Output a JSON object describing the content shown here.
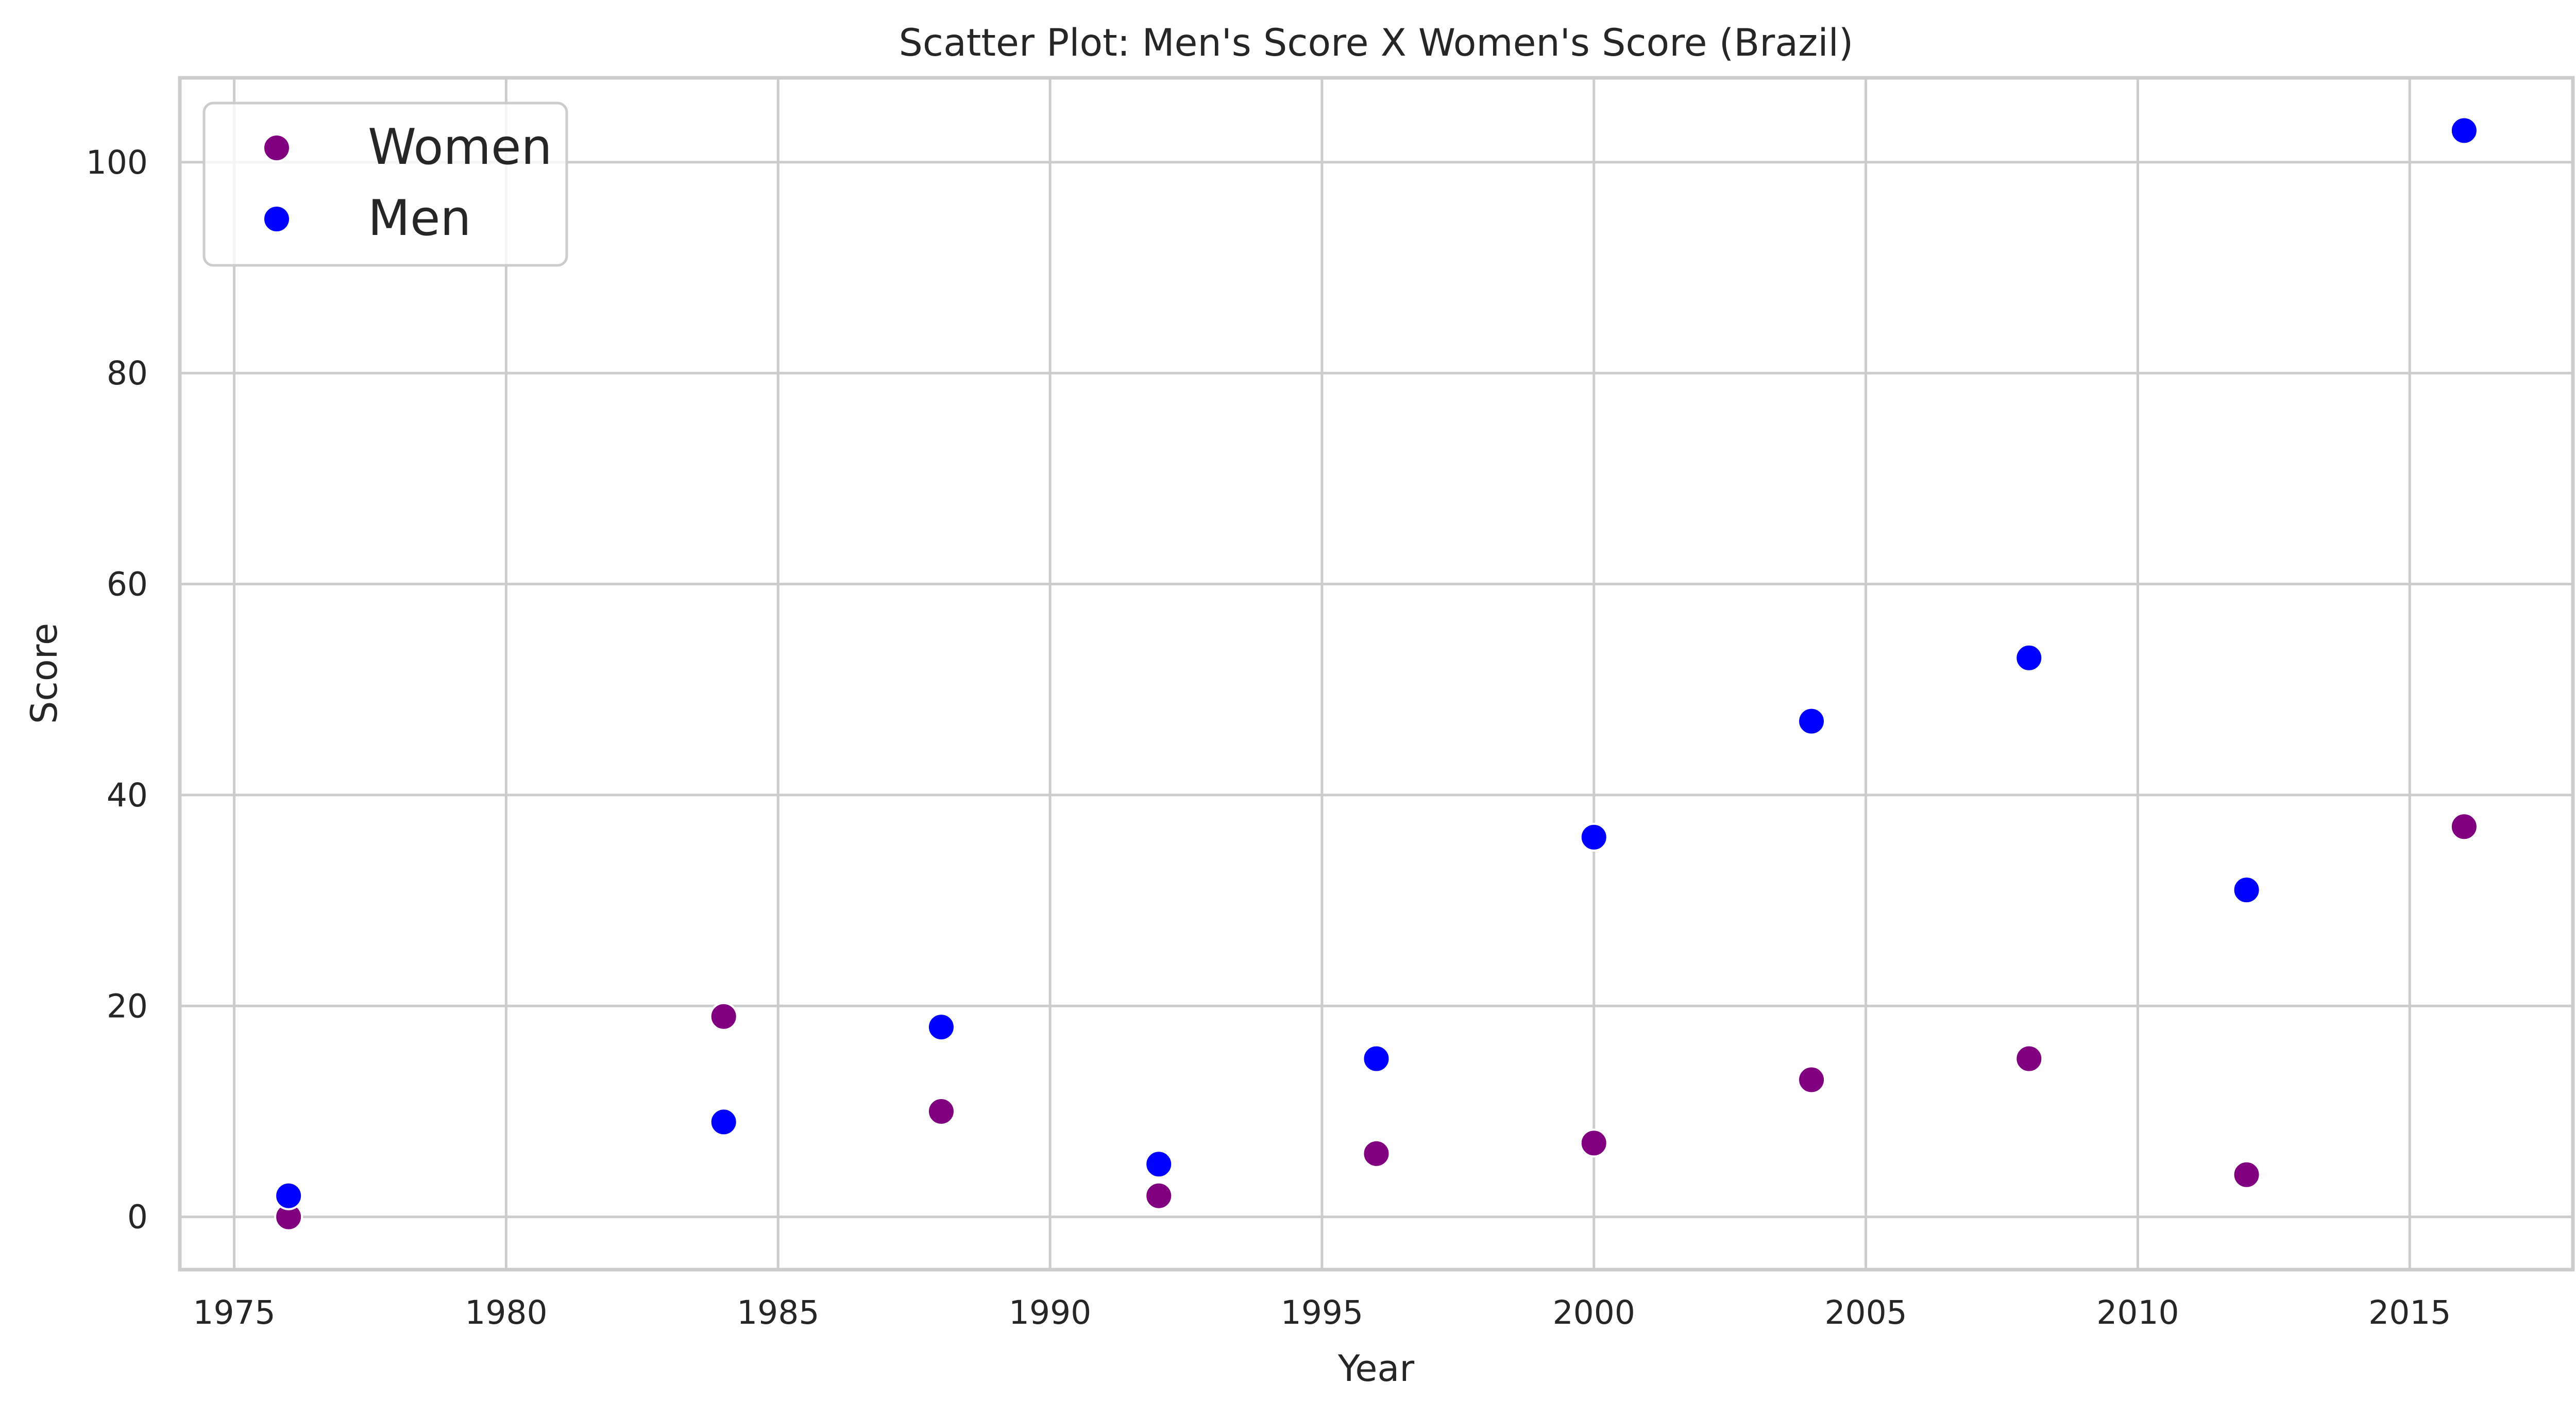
{
  "chart_data": {
    "type": "scatter",
    "title": "Scatter Plot: Men's Score X Women's Score (Brazil)",
    "xlabel": "Year",
    "ylabel": "Score",
    "xlim": [
      1974.0,
      2018.0
    ],
    "ylim": [
      -5,
      108
    ],
    "xticks": [
      1975,
      1980,
      1985,
      1990,
      1995,
      2000,
      2005,
      2010,
      2015
    ],
    "yticks": [
      0,
      20,
      40,
      60,
      80,
      100
    ],
    "grid": true,
    "legend_position": "top-left",
    "series": [
      {
        "name": "Women",
        "color": "#800080",
        "x": [
          1976,
          1984,
          1988,
          1992,
          1996,
          2000,
          2004,
          2008,
          2012,
          2016
        ],
        "y": [
          0,
          19,
          10,
          2,
          6,
          7,
          13,
          15,
          4,
          37
        ]
      },
      {
        "name": "Men",
        "color": "#0000ff",
        "x": [
          1976,
          1984,
          1988,
          1992,
          1996,
          2000,
          2004,
          2008,
          2012,
          2016
        ],
        "y": [
          2,
          9,
          18,
          5,
          15,
          36,
          47,
          53,
          31,
          103
        ]
      }
    ]
  }
}
